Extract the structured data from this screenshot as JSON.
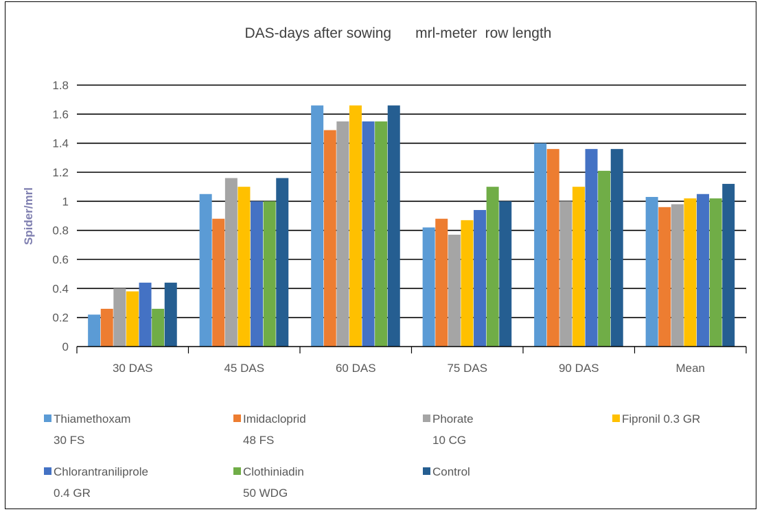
{
  "chart_data": {
    "type": "bar",
    "title": "DAS-days after sowing      mrl-meter  row length",
    "ylabel": "Spider/mrl",
    "xlabel": "",
    "ylim": [
      0,
      1.8
    ],
    "yticks": [
      "0",
      "0.2",
      "0.4",
      "0.6",
      "0.8",
      "1",
      "1.2",
      "1.4",
      "1.6",
      "1.8"
    ],
    "grid": true,
    "legend_position": "bottom",
    "categories": [
      "30 DAS",
      "45 DAS",
      "60 DAS",
      "75 DAS",
      "90 DAS",
      "Mean"
    ],
    "series": [
      {
        "name": [
          "Thiamethoxam",
          "30 FS"
        ],
        "color": "#5b9bd5",
        "values": [
          0.22,
          1.05,
          1.66,
          0.82,
          1.4,
          1.03
        ]
      },
      {
        "name": [
          "Imidacloprid",
          "48 FS"
        ],
        "color": "#ed7d31",
        "values": [
          0.26,
          0.88,
          1.49,
          0.88,
          1.36,
          0.96
        ]
      },
      {
        "name": [
          "Phorate",
          "10 CG"
        ],
        "color": "#a5a5a5",
        "values": [
          0.4,
          1.16,
          1.55,
          0.77,
          1.0,
          0.98
        ]
      },
      {
        "name": [
          "Fipronil 0.3 GR"
        ],
        "color": "#ffc000",
        "values": [
          0.38,
          1.1,
          1.66,
          0.87,
          1.1,
          1.02
        ]
      },
      {
        "name": [
          "Chlorantraniliprole",
          "0.4 GR"
        ],
        "color": "#4472c4",
        "values": [
          0.44,
          1.0,
          1.55,
          0.94,
          1.36,
          1.05
        ]
      },
      {
        "name": [
          "Clothiniadin",
          "50 WDG"
        ],
        "color": "#70ad47",
        "values": [
          0.26,
          1.0,
          1.55,
          1.1,
          1.21,
          1.02
        ]
      },
      {
        "name": [
          "Control"
        ],
        "color": "#255e91",
        "values": [
          0.44,
          1.16,
          1.66,
          1.0,
          1.36,
          1.12
        ]
      }
    ]
  }
}
